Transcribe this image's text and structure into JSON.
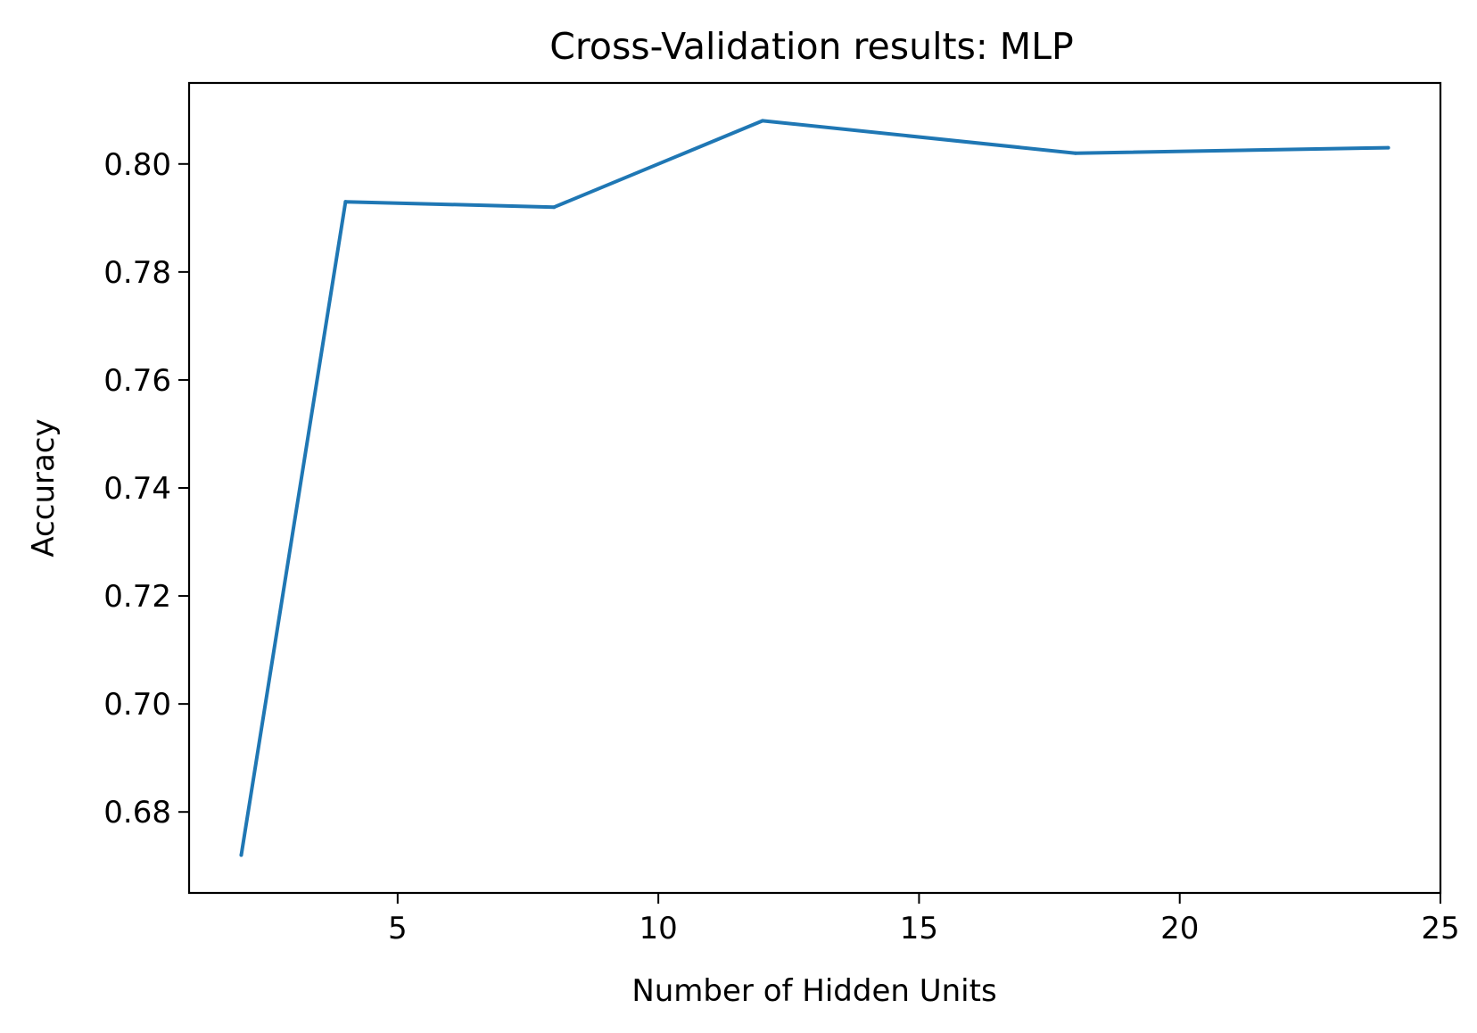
{
  "chart_data": {
    "type": "line",
    "title": "Cross-Validation results: MLP",
    "xlabel": "Number of Hidden Units",
    "ylabel": "Accuracy",
    "xlim": [
      1,
      25
    ],
    "ylim": [
      0.665,
      0.815
    ],
    "xticks": [
      5,
      10,
      15,
      20,
      25
    ],
    "yticks": [
      0.68,
      0.7,
      0.72,
      0.74,
      0.76,
      0.78,
      0.8
    ],
    "ytick_labels": [
      "0.68",
      "0.70",
      "0.72",
      "0.74",
      "0.76",
      "0.78",
      "0.80"
    ],
    "grid": false,
    "legend": "none",
    "series": [
      {
        "color": "#1f77b4",
        "x": [
          2,
          4,
          8,
          12,
          18,
          24
        ],
        "y": [
          0.672,
          0.793,
          0.792,
          0.808,
          0.802,
          0.803
        ]
      }
    ]
  }
}
